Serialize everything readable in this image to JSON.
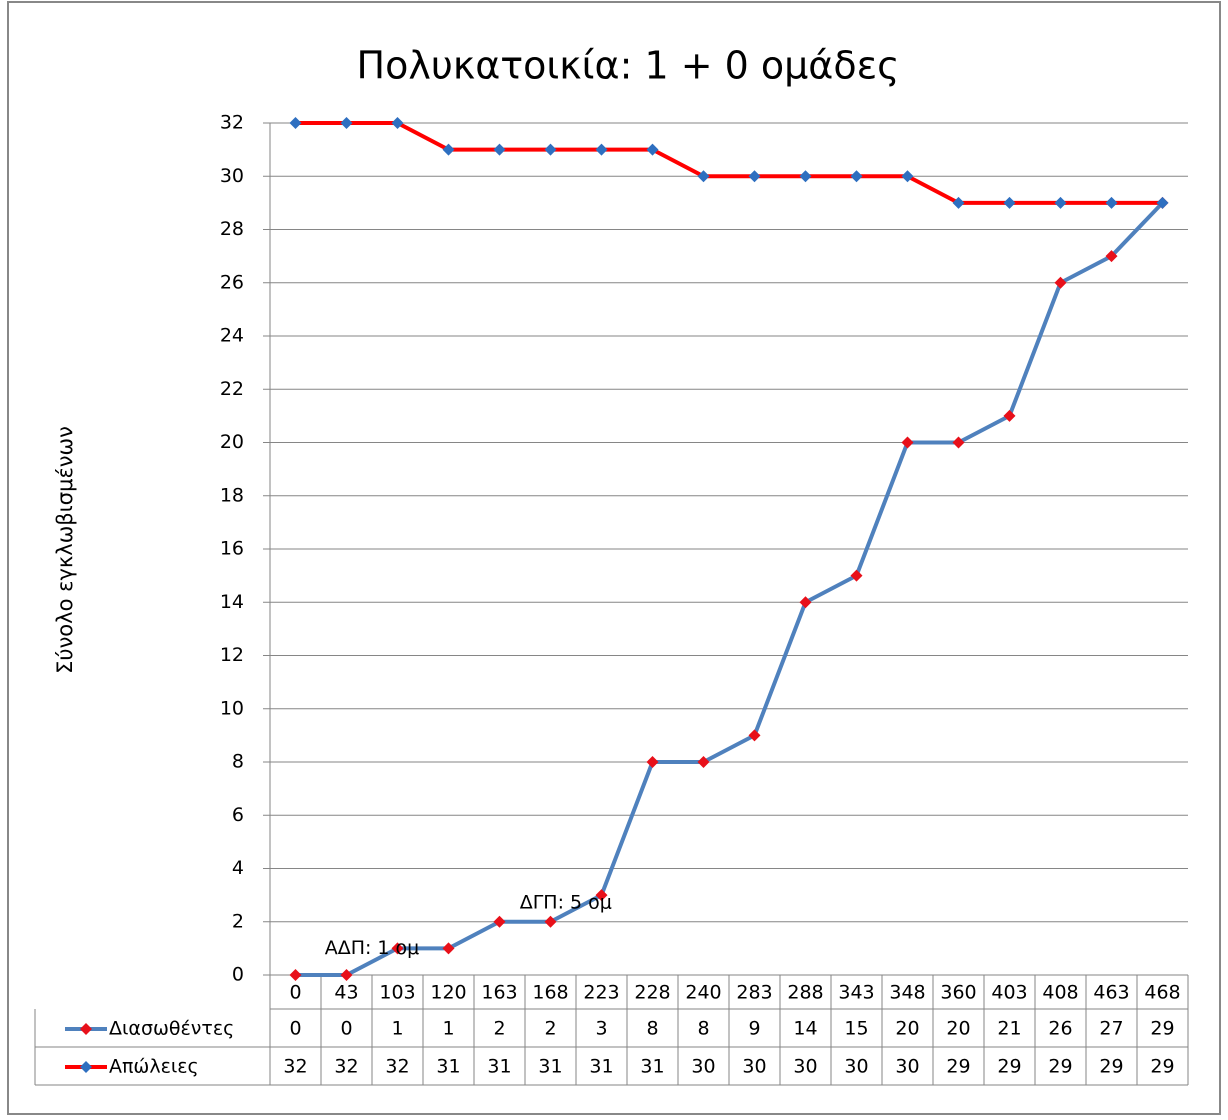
{
  "chart_data": {
    "type": "line",
    "title": "Πολυκατοικία: 1 + 0 ομάδες",
    "y_label": "Σύνολο εγκλωβισμένων",
    "categories": [
      0,
      43,
      103,
      120,
      163,
      168,
      223,
      228,
      240,
      283,
      288,
      343,
      348,
      360,
      403,
      408,
      463,
      468
    ],
    "series": [
      {
        "name": "Διασωθέντες",
        "color": "#4f81bd",
        "marker_color": "#e8101a",
        "values": [
          0,
          0,
          1,
          1,
          2,
          2,
          3,
          8,
          8,
          9,
          14,
          15,
          20,
          20,
          21,
          26,
          27,
          29
        ]
      },
      {
        "name": "Απώλειες",
        "color": "#ff0000",
        "marker_color": "#2e6fc0",
        "values": [
          32,
          32,
          32,
          31,
          31,
          31,
          31,
          31,
          30,
          30,
          30,
          30,
          30,
          29,
          29,
          29,
          29,
          29
        ]
      }
    ],
    "annotations": [
      {
        "text": "ΑΔΠ: 1 ομ",
        "category_index": 1.5,
        "y": 1
      },
      {
        "text": "ΔΓΠ: 5 ομ",
        "category_index": 5.3,
        "y": 2.7
      }
    ],
    "ylim": [
      0,
      32
    ],
    "yticks": [
      0,
      2,
      4,
      6,
      8,
      10,
      12,
      14,
      16,
      18,
      20,
      22,
      24,
      26,
      28,
      30,
      32
    ],
    "grid": true,
    "data_table": true
  }
}
